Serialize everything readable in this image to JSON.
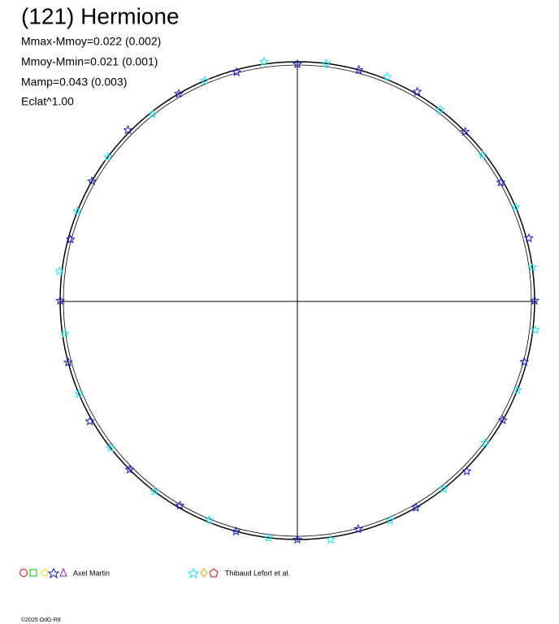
{
  "chart_data": {
    "type": "polar",
    "title": "(121) Hermione",
    "annotations": [
      "Mmax-Mmoy=0.022 (0.002)",
      "Mmoy-Mmin=0.021 (0.001)",
      "Mamp=0.043 (0.003)",
      "Eclat^1.00"
    ],
    "footer": "©2025 OdG-R8",
    "series": [
      {
        "name": "Axel Martin",
        "color": "#1a1acc",
        "x": [
          0,
          15,
          30,
          45,
          60,
          75,
          90,
          105,
          120,
          135,
          150,
          165,
          180,
          195,
          210,
          225,
          240,
          255,
          270,
          285,
          300,
          315,
          330,
          345
        ],
        "values": [
          0.99,
          1.0,
          1.01,
          1.0,
          0.99,
          1.01,
          1.0,
          0.99,
          1.0,
          1.01,
          1.0,
          0.99,
          1.0,
          1.0,
          0.99,
          1.0,
          1.01,
          1.0,
          1.0,
          0.99,
          1.0,
          1.01,
          1.0,
          0.99
        ]
      },
      {
        "name": "Thibaud Lefort et al.",
        "color": "#22e5f5",
        "x": [
          7,
          22,
          37,
          52,
          67,
          82,
          97,
          112,
          127,
          142,
          157,
          172,
          187,
          202,
          217,
          232,
          247,
          262,
          277,
          292,
          307,
          322,
          337,
          352
        ],
        "values": [
          1.0,
          1.01,
          1.0,
          0.99,
          1.0,
          1.0,
          1.01,
          1.0,
          0.99,
          1.0,
          1.0,
          1.01,
          1.0,
          0.99,
          1.0,
          1.0,
          1.0,
          0.99,
          1.01,
          1.0,
          1.0,
          0.99,
          1.0,
          1.01
        ]
      }
    ]
  }
}
